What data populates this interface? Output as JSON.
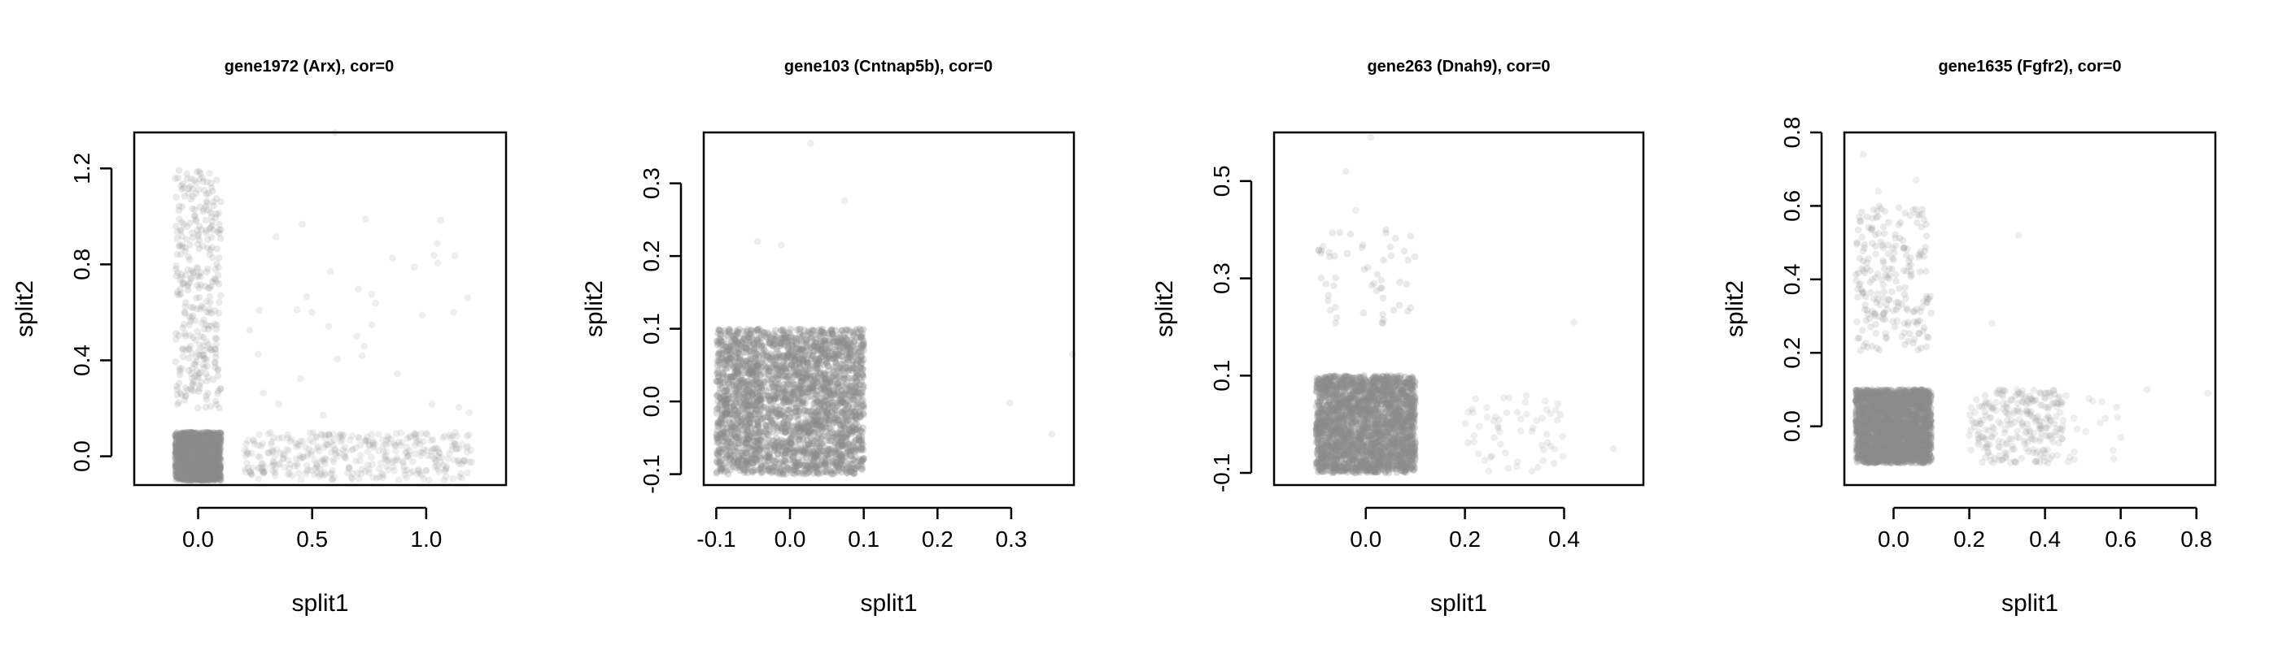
{
  "chart_data": [
    {
      "type": "scatter",
      "title": "gene1972 (Arx), cor=0",
      "xlabel": "split1",
      "ylabel": "split2",
      "xlim": [
        -0.28,
        1.35
      ],
      "ylim": [
        -0.12,
        1.35
      ],
      "x_ticks": [
        0.0,
        0.5,
        1.0
      ],
      "x_tick_labels": [
        "0.0",
        "0.5",
        "1.0"
      ],
      "y_ticks": [
        0.0,
        0.4,
        0.8,
        1.2
      ],
      "y_tick_labels": [
        "0.0",
        "0.4",
        "0.8",
        "1.2"
      ],
      "point_color": "#8c8c8c",
      "point_clusters": [
        {
          "x_range": [
            -0.1,
            0.1
          ],
          "y_range": [
            -0.1,
            0.1
          ],
          "count": 1500,
          "opacity": 0.3
        },
        {
          "x_range": [
            -0.1,
            0.1
          ],
          "y_range": [
            0.2,
            1.2
          ],
          "count": 320,
          "opacity": 0.18
        },
        {
          "x_range": [
            0.2,
            1.2
          ],
          "y_range": [
            -0.1,
            0.1
          ],
          "count": 380,
          "opacity": 0.15
        },
        {
          "x_range": [
            0.2,
            1.2
          ],
          "y_range": [
            0.1,
            1.0
          ],
          "count": 35,
          "opacity": 0.15
        }
      ],
      "points": [
        [
          0.6,
          1.35
        ],
        [
          0.05,
          1.18
        ],
        [
          1.12,
          0.6
        ],
        [
          0.58,
          0.77
        ]
      ]
    },
    {
      "type": "scatter",
      "title": "gene103 (Cntnap5b), cor=0",
      "xlabel": "split1",
      "ylabel": "split2",
      "xlim": [
        -0.117,
        0.385
      ],
      "ylim": [
        -0.115,
        0.37
      ],
      "x_ticks": [
        -0.1,
        0.0,
        0.1,
        0.2,
        0.3
      ],
      "x_tick_labels": [
        "-0.1",
        "0.0",
        "0.1",
        "0.2",
        "0.3"
      ],
      "y_ticks": [
        -0.1,
        0.0,
        0.1,
        0.2,
        0.3
      ],
      "y_tick_labels": [
        "-0.1",
        "0.0",
        "0.1",
        "0.2",
        "0.3"
      ],
      "point_color": "#8c8c8c",
      "point_clusters": [
        {
          "x_range": [
            -0.1,
            0.1
          ],
          "y_range": [
            -0.1,
            0.1
          ],
          "count": 2600,
          "opacity": 0.3
        }
      ],
      "points": [
        [
          0.028,
          0.355
        ],
        [
          0.074,
          0.276
        ],
        [
          -0.044,
          0.22
        ],
        [
          -0.012,
          0.215
        ],
        [
          0.298,
          -0.002
        ],
        [
          0.355,
          -0.045
        ],
        [
          0.383,
          0.065
        ]
      ]
    },
    {
      "type": "scatter",
      "title": "gene263 (Dnah9), cor=0",
      "xlabel": "split1",
      "ylabel": "split2",
      "xlim": [
        -0.185,
        0.56
      ],
      "ylim": [
        -0.125,
        0.6
      ],
      "x_ticks": [
        0.0,
        0.2,
        0.4
      ],
      "x_tick_labels": [
        "0.0",
        "0.2",
        "0.4"
      ],
      "y_ticks": [
        -0.1,
        0.1,
        0.3,
        0.5
      ],
      "y_tick_labels": [
        "-0.1",
        "0.1",
        "0.3",
        "0.5"
      ],
      "point_color": "#8c8c8c",
      "point_clusters": [
        {
          "x_range": [
            -0.1,
            0.1
          ],
          "y_range": [
            -0.1,
            0.1
          ],
          "count": 2300,
          "opacity": 0.3
        },
        {
          "x_range": [
            -0.1,
            0.1
          ],
          "y_range": [
            0.2,
            0.4
          ],
          "count": 55,
          "opacity": 0.18
        },
        {
          "x_range": [
            0.2,
            0.4
          ],
          "y_range": [
            -0.1,
            0.07
          ],
          "count": 60,
          "opacity": 0.15
        }
      ],
      "points": [
        [
          0.01,
          0.59
        ],
        [
          -0.04,
          0.52
        ],
        [
          -0.02,
          0.44
        ],
        [
          0.42,
          0.21
        ],
        [
          0.5,
          -0.05
        ]
      ]
    },
    {
      "type": "scatter",
      "title": "gene1635 (Fgfr2), cor=0",
      "xlabel": "split1",
      "ylabel": "split2",
      "xlim": [
        -0.13,
        0.85
      ],
      "ylim": [
        -0.16,
        0.8
      ],
      "x_ticks": [
        0.0,
        0.2,
        0.4,
        0.6,
        0.8
      ],
      "x_tick_labels": [
        "0.0",
        "0.2",
        "0.4",
        "0.6",
        "0.8"
      ],
      "y_ticks": [
        0.0,
        0.2,
        0.4,
        0.6,
        0.8
      ],
      "y_tick_labels": [
        "0.0",
        "0.2",
        "0.4",
        "0.6",
        "0.8"
      ],
      "point_color": "#8c8c8c",
      "point_clusters": [
        {
          "x_range": [
            -0.1,
            0.1
          ],
          "y_range": [
            -0.1,
            0.1
          ],
          "count": 2300,
          "opacity": 0.3
        },
        {
          "x_range": [
            -0.1,
            0.1
          ],
          "y_range": [
            0.2,
            0.6
          ],
          "count": 220,
          "opacity": 0.18
        },
        {
          "x_range": [
            0.2,
            0.45
          ],
          "y_range": [
            -0.1,
            0.1
          ],
          "count": 260,
          "opacity": 0.16
        },
        {
          "x_range": [
            0.45,
            0.6
          ],
          "y_range": [
            -0.1,
            0.1
          ],
          "count": 18,
          "opacity": 0.15
        }
      ],
      "points": [
        [
          -0.08,
          0.74
        ],
        [
          0.06,
          0.67
        ],
        [
          -0.04,
          0.64
        ],
        [
          0.33,
          0.52
        ],
        [
          0.67,
          0.1
        ],
        [
          0.83,
          0.09
        ],
        [
          0.26,
          0.28
        ]
      ]
    }
  ]
}
